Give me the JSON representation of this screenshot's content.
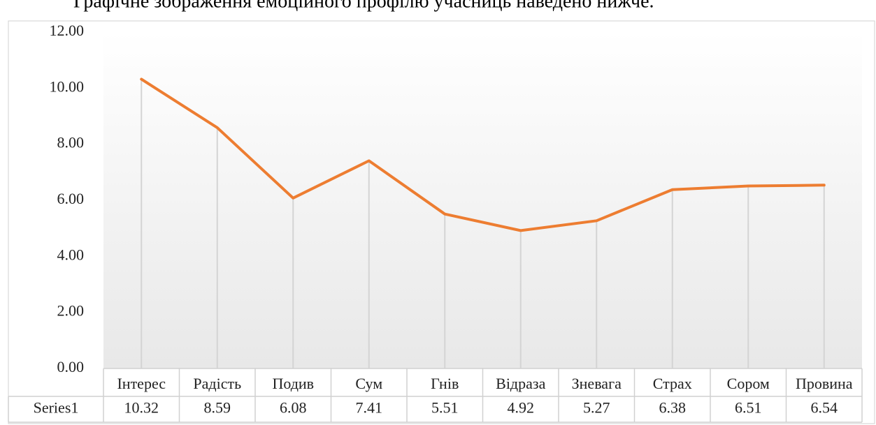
{
  "caption": "Графічне зображення емоційного профілю учасниць наведено нижче.",
  "chart_data": {
    "type": "line",
    "categories": [
      "Інтерес",
      "Радість",
      "Подив",
      "Сум",
      "Гнів",
      "Відраза",
      "Зневага",
      "Страх",
      "Сором",
      "Провина"
    ],
    "series": [
      {
        "name": "Series1",
        "color": "#ED7D31",
        "values": [
          10.32,
          8.59,
          6.08,
          7.41,
          5.51,
          4.92,
          5.27,
          6.38,
          6.51,
          6.54
        ]
      }
    ],
    "ylim": [
      0,
      12
    ],
    "yticks": [
      {
        "value": 0,
        "label": "0.00"
      },
      {
        "value": 2,
        "label": "2.00"
      },
      {
        "value": 4,
        "label": "4.00"
      },
      {
        "value": 6,
        "label": "6.00"
      },
      {
        "value": 8,
        "label": "8.00"
      },
      {
        "value": 10,
        "label": "10.00"
      },
      {
        "value": 12,
        "label": "12.00"
      }
    ],
    "drop_lines": true,
    "data_table": true
  }
}
